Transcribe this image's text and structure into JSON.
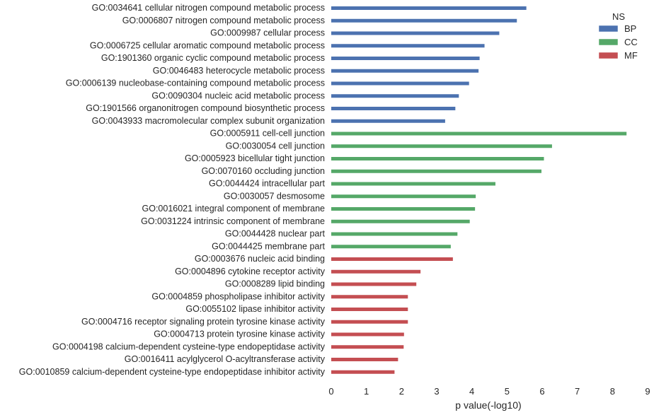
{
  "chart_data": {
    "type": "bar",
    "orientation": "horizontal",
    "xlabel": "p value(-log10)",
    "xlim": [
      0,
      9
    ],
    "xticks": [
      0,
      1,
      2,
      3,
      4,
      5,
      6,
      7,
      8,
      9
    ],
    "grid": false,
    "legend": {
      "title": "NS",
      "placement": "top-right",
      "entries": [
        {
          "name": "BP",
          "color": "#4c72b0"
        },
        {
          "name": "CC",
          "color": "#55a868"
        },
        {
          "name": "MF",
          "color": "#c44e52"
        }
      ]
    },
    "categories": [
      "GO:0034641 cellular nitrogen compound metabolic process",
      "GO:0006807 nitrogen compound metabolic process",
      "GO:0009987 cellular process",
      "GO:0006725 cellular aromatic compound metabolic process",
      "GO:1901360 organic cyclic compound metabolic process",
      "GO:0046483 heterocycle metabolic process",
      "GO:0006139 nucleobase-containing compound metabolic process",
      "GO:0090304 nucleic acid metabolic process",
      "GO:1901566 organonitrogen compound biosynthetic process",
      "GO:0043933 macromolecular complex subunit organization",
      "GO:0005911 cell-cell junction",
      "GO:0030054 cell junction",
      "GO:0005923 bicellular tight junction",
      "GO:0070160 occluding junction",
      "GO:0044424 intracellular part",
      "GO:0030057 desmosome",
      "GO:0016021 integral component of membrane",
      "GO:0031224 intrinsic component of membrane",
      "GO:0044428 nuclear part",
      "GO:0044425 membrane part",
      "GO:0003676 nucleic acid binding",
      "GO:0004896 cytokine receptor activity",
      "GO:0008289 lipid binding",
      "GO:0004859 phospholipase inhibitor activity",
      "GO:0055102 lipase inhibitor activity",
      "GO:0004716 receptor signaling protein tyrosine kinase activity",
      "GO:0004713 protein tyrosine kinase activity",
      "GO:0004198 calcium-dependent cysteine-type endopeptidase activity",
      "GO:0016411 acylglycerol O-acyltransferase activity",
      "GO:0010859 calcium-dependent cysteine-type endopeptidase inhibitor activity"
    ],
    "values": [
      5.55,
      5.28,
      4.78,
      4.36,
      4.22,
      4.19,
      3.92,
      3.63,
      3.53,
      3.24,
      8.4,
      6.28,
      6.05,
      5.98,
      4.67,
      4.11,
      4.09,
      3.94,
      3.59,
      3.4,
      3.46,
      2.54,
      2.42,
      2.18,
      2.18,
      2.18,
      2.07,
      2.06,
      1.9,
      1.8
    ],
    "ns": [
      "BP",
      "BP",
      "BP",
      "BP",
      "BP",
      "BP",
      "BP",
      "BP",
      "BP",
      "BP",
      "CC",
      "CC",
      "CC",
      "CC",
      "CC",
      "CC",
      "CC",
      "CC",
      "CC",
      "CC",
      "MF",
      "MF",
      "MF",
      "MF",
      "MF",
      "MF",
      "MF",
      "MF",
      "MF",
      "MF"
    ]
  }
}
